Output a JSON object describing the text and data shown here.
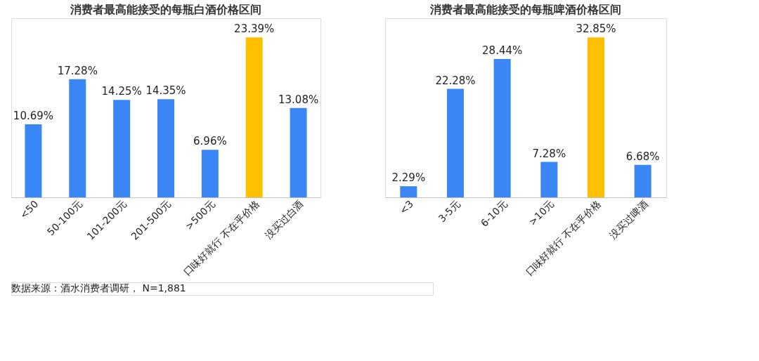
{
  "chart_data": [
    {
      "type": "bar",
      "title": "消费者最高能接受的每瓶白酒价格区间",
      "categories": [
        "<50",
        "50-100元",
        "101-200元",
        "201-500元",
        ">500元",
        "口味好就行 不在乎价格",
        "没买过白酒"
      ],
      "values": [
        10.69,
        17.28,
        14.25,
        14.35,
        6.96,
        23.39,
        13.08
      ],
      "value_labels": [
        "10.69%",
        "17.28%",
        "14.25%",
        "14.35%",
        "6.96%",
        "23.39%",
        "13.08%"
      ],
      "colors": [
        "#3a86f5",
        "#3a86f5",
        "#3a86f5",
        "#3a86f5",
        "#3a86f5",
        "#ffc000",
        "#3a86f5"
      ],
      "grid": false,
      "tick_labels": "x",
      "annotations": [
        "数据来源：酒水消费者调研， N=1,881"
      ]
    },
    {
      "type": "bar",
      "title": "消费者最高能接受的每瓶啤酒价格区间",
      "categories": [
        "<3",
        "3-5元",
        "6-10元",
        ">10元",
        "口味好就行 不在乎价格",
        "没买过啤酒"
      ],
      "values": [
        2.29,
        22.28,
        28.44,
        7.28,
        32.85,
        6.68
      ],
      "value_labels": [
        "2.29%",
        "22.28%",
        "28.44%",
        "7.28%",
        "32.85%",
        "6.68%"
      ],
      "colors": [
        "#3a86f5",
        "#3a86f5",
        "#3a86f5",
        "#3a86f5",
        "#ffc000",
        "#3a86f5"
      ],
      "grid": false,
      "tick_labels": "x"
    }
  ]
}
